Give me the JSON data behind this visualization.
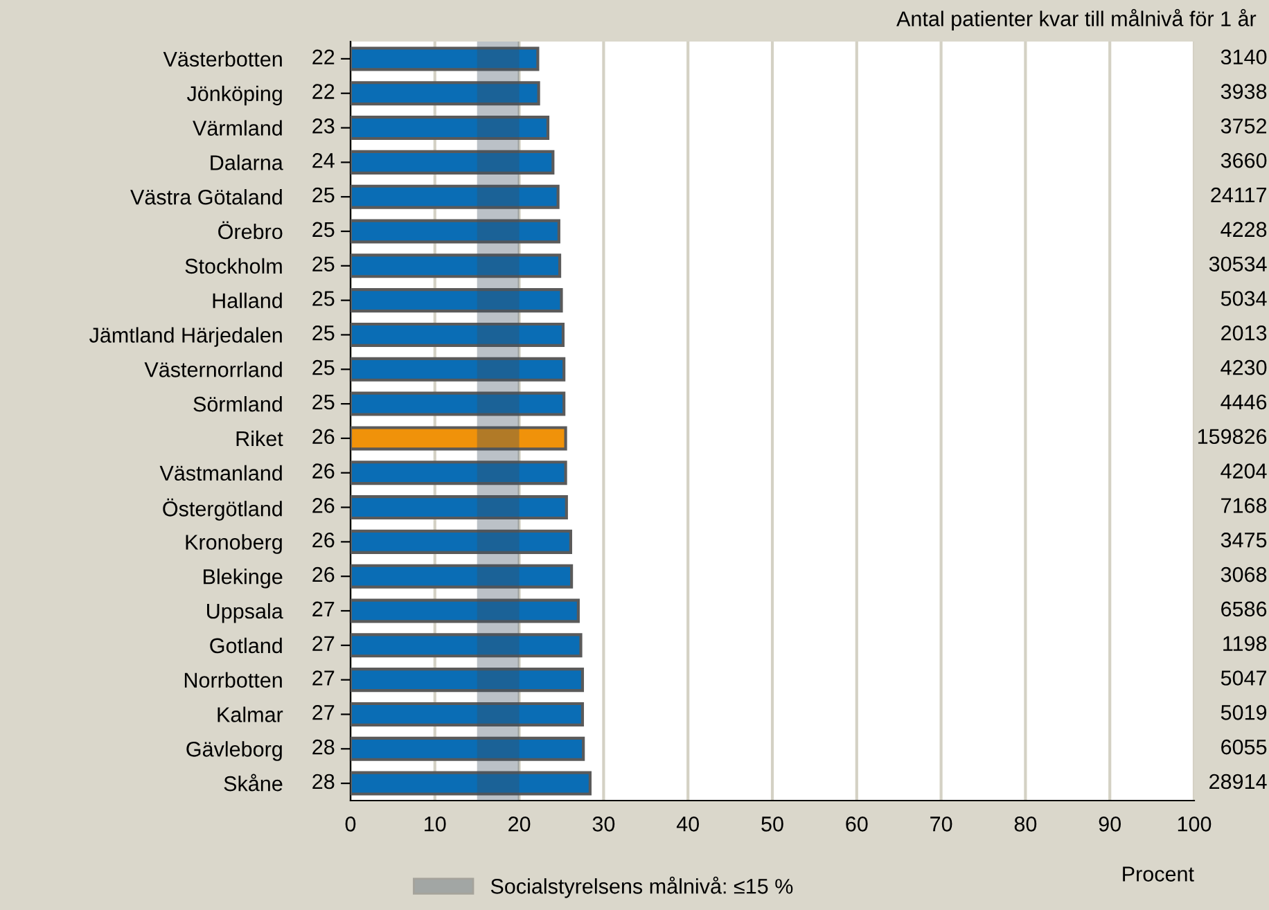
{
  "chart_data": {
    "type": "bar",
    "orientation": "horizontal",
    "xlabel": "Procent",
    "categories": [
      "Västerbotten",
      "Jönköping",
      "Värmland",
      "Dalarna",
      "Västra Götaland",
      "Örebro",
      "Stockholm",
      "Halland",
      "Jämtland Härjedalen",
      "Västernorrland",
      "Sörmland",
      "Riket",
      "Västmanland",
      "Östergötland",
      "Kronoberg",
      "Blekinge",
      "Uppsala",
      "Gotland",
      "Norrbotten",
      "Kalmar",
      "Gävleborg",
      "Skåne"
    ],
    "values": [
      22.2,
      22.3,
      23.4,
      24.0,
      24.6,
      24.7,
      24.8,
      25.0,
      25.2,
      25.3,
      25.3,
      25.5,
      25.5,
      25.6,
      26.1,
      26.2,
      27.0,
      27.3,
      27.5,
      27.5,
      27.6,
      28.4
    ],
    "value_labels": [
      "22",
      "22",
      "23",
      "24",
      "25",
      "25",
      "25",
      "25",
      "25",
      "25",
      "25",
      "26",
      "26",
      "26",
      "26",
      "26",
      "27",
      "27",
      "27",
      "27",
      "28",
      "28"
    ],
    "colors": [
      "#0a6db5",
      "#0a6db5",
      "#0a6db5",
      "#0a6db5",
      "#0a6db5",
      "#0a6db5",
      "#0a6db5",
      "#0a6db5",
      "#0a6db5",
      "#0a6db5",
      "#0a6db5",
      "#f0920a",
      "#0a6db5",
      "#0a6db5",
      "#0a6db5",
      "#0a6db5",
      "#0a6db5",
      "#0a6db5",
      "#0a6db5",
      "#0a6db5",
      "#0a6db5",
      "#0a6db5"
    ],
    "xlim": [
      0,
      100
    ],
    "xticks": [
      0,
      10,
      20,
      30,
      40,
      50,
      60,
      70,
      80,
      90,
      100
    ],
    "grid": "x",
    "bands": [
      {
        "axis": "x",
        "from": 15,
        "to": 20,
        "label": "Socialstyrelsens målnivå: ≤15 %",
        "color": "#3c4e5e"
      }
    ],
    "legend": "bottom",
    "annotations": [
      "Antal patienter kvar till målnivå för 1 år",
      "3140",
      "3938",
      "3752",
      "3660",
      "24117",
      "4228",
      "30534",
      "5034",
      "2013",
      "4230",
      "4446",
      "159826",
      "4204",
      "7168",
      "3475",
      "3068",
      "6586",
      "1198",
      "5047",
      "5019",
      "6055",
      "28914"
    ]
  }
}
